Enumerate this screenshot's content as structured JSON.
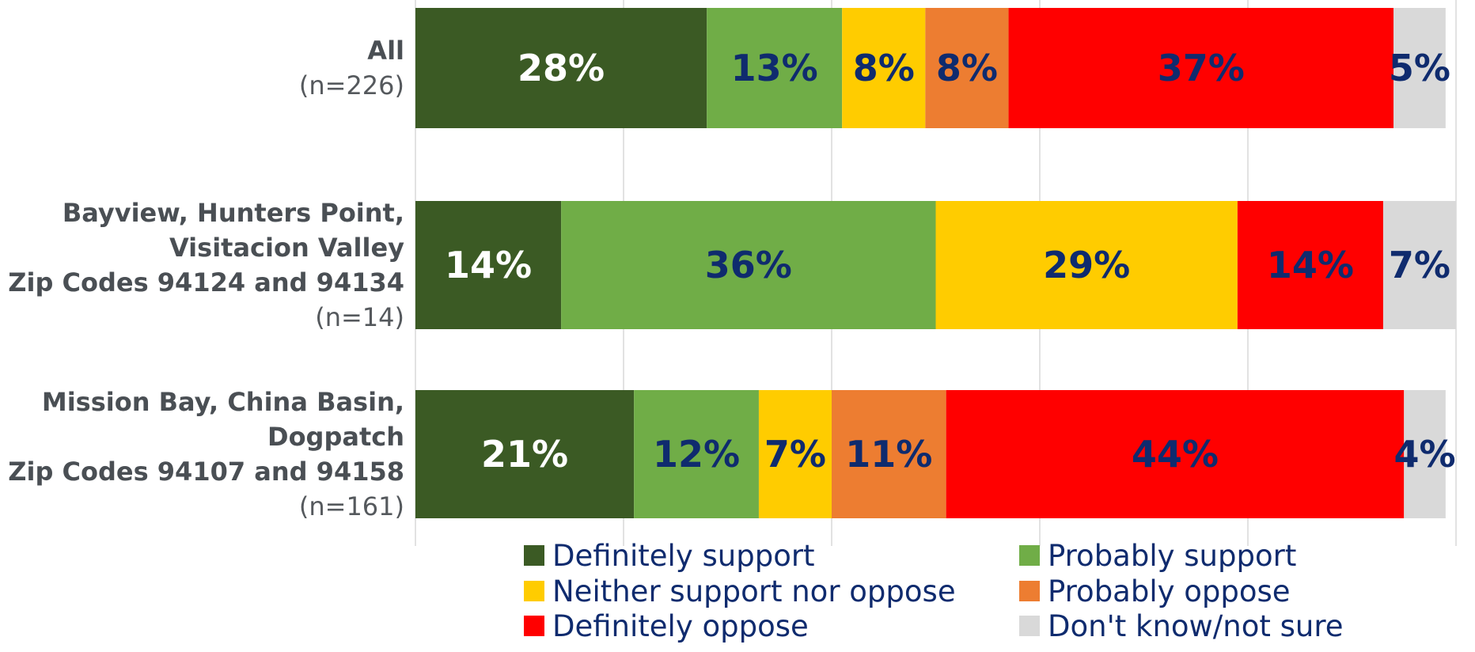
{
  "chart_data": {
    "type": "bar",
    "orientation": "horizontal",
    "stacked": true,
    "normalized_percent": true,
    "xlim": [
      0,
      100
    ],
    "grid": true,
    "legend_position": "bottom",
    "categories": [
      {
        "title_lines": [
          "All"
        ],
        "n": "(n=226)"
      },
      {
        "title_lines": [
          "Bayview, Hunters Point,",
          "Visitacion Valley",
          "Zip Codes 94124 and 94134"
        ],
        "n": "(n=14)"
      },
      {
        "title_lines": [
          "Mission Bay, China Basin,",
          "Dogpatch",
          "Zip Codes 94107 and 94158"
        ],
        "n": "(n=161)"
      }
    ],
    "series": [
      {
        "name": "Definitely support",
        "color": "#3b5a24",
        "label_color": "#ffffff",
        "values": [
          28,
          14,
          21
        ]
      },
      {
        "name": "Probably support",
        "color": "#70ad47",
        "label_color": "#0f2b6e",
        "values": [
          13,
          36,
          12
        ]
      },
      {
        "name": "Neither support nor oppose",
        "color": "#ffcc00",
        "label_color": "#0f2b6e",
        "values": [
          8,
          29,
          7
        ]
      },
      {
        "name": "Probably oppose",
        "color": "#ed7d31",
        "label_color": "#0f2b6e",
        "values": [
          8,
          0,
          11
        ]
      },
      {
        "name": "Definitely oppose",
        "color": "#ff0000",
        "label_color": "#0f2b6e",
        "values": [
          37,
          14,
          44
        ]
      },
      {
        "name": "Don't know/not sure",
        "color": "#d9d9d9",
        "label_color": "#0f2b6e",
        "values": [
          5,
          7,
          4
        ]
      }
    ],
    "data_labels": [
      [
        "28%",
        "13%",
        "8%",
        "8%",
        "37%",
        "5%"
      ],
      [
        "14%",
        "36%",
        "29%",
        "",
        "14%",
        "7%"
      ],
      [
        "21%",
        "12%",
        "7%",
        "11%",
        "44%",
        "4%"
      ]
    ]
  }
}
